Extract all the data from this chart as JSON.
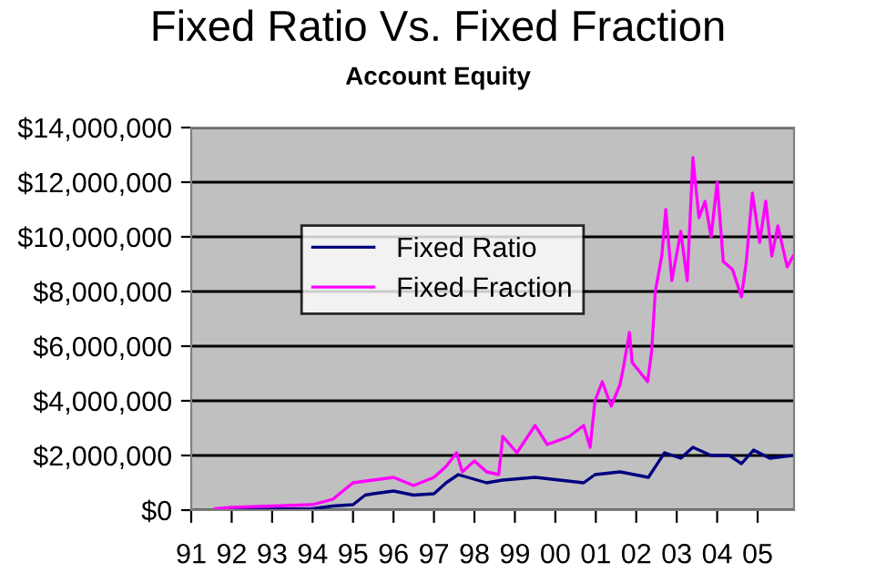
{
  "chart_data": {
    "type": "line",
    "title": "Fixed Ratio Vs. Fixed Fraction",
    "subtitle": "Account Equity",
    "series": [
      {
        "name": "Fixed Ratio",
        "color": "#000080",
        "x": [
          1991.6,
          1992,
          1993,
          1994,
          1994.5,
          1995,
          1995.3,
          1995.5,
          1996,
          1996.5,
          1997,
          1997.3,
          1997.6,
          1998.3,
          1998.7,
          1999.5,
          2000.7,
          2000.98,
          2001.6,
          2002.3,
          2002.7,
          2003.1,
          2003.4,
          2003.85,
          2004.3,
          2004.6,
          2004.9,
          2005.3,
          2005.88
        ],
        "values": [
          20000,
          30000,
          40000,
          50000,
          150000,
          200000,
          550000,
          600000,
          700000,
          550000,
          600000,
          1000000,
          1300000,
          1000000,
          1100000,
          1200000,
          1000000,
          1300000,
          1400000,
          1200000,
          2100000,
          1900000,
          2300000,
          2000000,
          2000000,
          1700000,
          2200000,
          1900000,
          2000000
        ]
      },
      {
        "name": "Fixed Fraction",
        "color": "#ff00ff",
        "x": [
          1991.6,
          1992,
          1993,
          1994,
          1994.5,
          1995,
          1995.5,
          1996,
          1996.5,
          1997,
          1997.3,
          1997.56,
          1997.7,
          1998,
          1998.3,
          1998.6,
          1998.7,
          1999.05,
          1999.5,
          1999.8,
          2000.35,
          2000.7,
          2000.86,
          2000.98,
          2001.16,
          2001.38,
          2001.6,
          2001.68,
          2001.83,
          2001.9,
          2002.28,
          2002.38,
          2002.47,
          2002.63,
          2002.73,
          2002.88,
          2003.1,
          2003.26,
          2003.4,
          2003.55,
          2003.7,
          2003.85,
          2004,
          2004.15,
          2004.38,
          2004.6,
          2004.72,
          2004.87,
          2005.05,
          2005.2,
          2005.35,
          2005.5,
          2005.73,
          2005.88
        ],
        "values": [
          50000,
          100000,
          150000,
          200000,
          400000,
          1000000,
          1100000,
          1200000,
          900000,
          1200000,
          1600000,
          2100000,
          1400000,
          1800000,
          1400000,
          1300000,
          2700000,
          2100000,
          3100000,
          2400000,
          2700000,
          3100000,
          2300000,
          4000000,
          4700000,
          3800000,
          4600000,
          5200000,
          6500000,
          5400000,
          4700000,
          5800000,
          8000000,
          9300000,
          11000000,
          8400000,
          10200000,
          8400000,
          12900000,
          10700000,
          11300000,
          10000000,
          12000000,
          9100000,
          8800000,
          7800000,
          9100000,
          11600000,
          9800000,
          11300000,
          9300000,
          10400000,
          8900000,
          9300000
        ]
      }
    ],
    "xlim": [
      1991,
      2005.9
    ],
    "xticks": [
      {
        "value": 1991,
        "label": "91"
      },
      {
        "value": 1992,
        "label": "92"
      },
      {
        "value": 1993,
        "label": "93"
      },
      {
        "value": 1994,
        "label": "94"
      },
      {
        "value": 1995,
        "label": "95"
      },
      {
        "value": 1996,
        "label": "96"
      },
      {
        "value": 1997,
        "label": "97"
      },
      {
        "value": 1998,
        "label": "98"
      },
      {
        "value": 1999,
        "label": "99"
      },
      {
        "value": 2000,
        "label": "00"
      },
      {
        "value": 2001,
        "label": "01"
      },
      {
        "value": 2002,
        "label": "02"
      },
      {
        "value": 2003,
        "label": "03"
      },
      {
        "value": 2004,
        "label": "04"
      },
      {
        "value": 2005,
        "label": "05"
      }
    ],
    "ylim": [
      0,
      14000000
    ],
    "yticks": [
      {
        "value": 0,
        "label": "$0"
      },
      {
        "value": 2000000,
        "label": "$2,000,000"
      },
      {
        "value": 4000000,
        "label": "$4,000,000"
      },
      {
        "value": 6000000,
        "label": "$6,000,000"
      },
      {
        "value": 8000000,
        "label": "$8,000,000"
      },
      {
        "value": 10000000,
        "label": "$10,000,000"
      },
      {
        "value": 12000000,
        "label": "$12,000,000"
      },
      {
        "value": 14000000,
        "label": "$14,000,000"
      }
    ],
    "grid": "y",
    "legend": "top left",
    "marker": "none",
    "line_style": "solid"
  }
}
